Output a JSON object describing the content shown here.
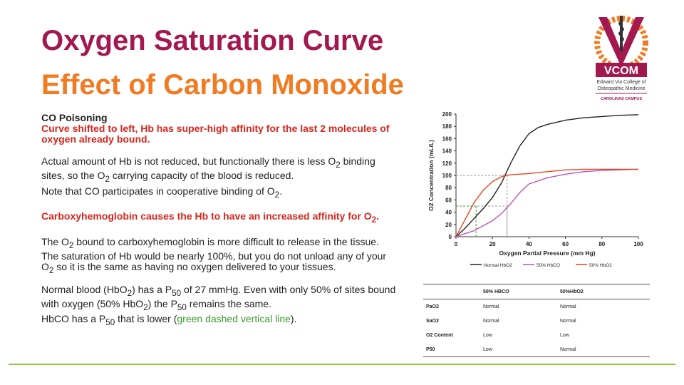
{
  "title": {
    "line1": "Oxygen Saturation Curve",
    "line2": "Effect of Carbon Monoxide"
  },
  "logo": {
    "abbr": "VCOM",
    "line1": "Edward Via College of",
    "line2": "Osteopathic Medicine",
    "campus": "CAROLINAS CAMPUS"
  },
  "colors": {
    "maroon": "#a3184f",
    "orange": "#f07b22",
    "red": "#d8251d",
    "green": "#3a9a2a",
    "accent_line": "#8cc63f"
  },
  "body": {
    "p1_heading": "CO Poisoning",
    "p1_red": "Curve shifted to left, Hb has super-high affinity for the last 2 molecules of oxygen already bound.",
    "p2_a": "Actual amount of Hb is not reduced, but functionally there is less O",
    "p2_sub": "2",
    "p2_b": " binding sites, so the O",
    "p2_sub2": "2",
    "p2_c": " carrying capacity of the blood is reduced.",
    "p3_a": "Note that CO participates in cooperative binding of O",
    "p3_sub": "2",
    "p3_b": ".",
    "p4_a": "Carboxyhemoglobin causes the Hb to have an increased affinity for O",
    "p4_sub": "2",
    "p4_b": ".",
    "p5_a": "The O",
    "p5_sub": "2",
    "p5_b": " bound to carboxyhemoglobin is more difficult to release in the tissue.  The saturation of Hb would be nearly 100%, but you do not unload any of your O",
    "p5_sub2": "2",
    "p5_c": " so it is the same as having no oxygen delivered to your tissues.",
    "p6_a": "Normal blood (HbO",
    "p6_sub": "2",
    "p6_b": ") has a P",
    "p6_sub2": "50",
    "p6_c": " of 27 mmHg. Even with only 50% of sites bound with oxygen (50% HbO",
    "p6_sub3": "2",
    "p6_d": ") the P",
    "p6_sub4": "50",
    "p6_e": " remains the same.",
    "p7_a": "HbCO has a P",
    "p7_sub": "50",
    "p7_b": " that is lower (",
    "p7_green": "green dashed vertical line",
    "p7_c": ")."
  },
  "chart_data": {
    "type": "line",
    "xlabel": "Oxygen Partial Pressure (mm Hg)",
    "ylabel": "O2 Concentration (mL/L)",
    "xlim": [
      0,
      100
    ],
    "ylim": [
      0,
      200
    ],
    "xticks": [
      0,
      20,
      40,
      60,
      80,
      100
    ],
    "yticks": [
      0,
      20,
      40,
      60,
      80,
      100,
      120,
      140,
      160,
      180,
      200
    ],
    "grid": false,
    "legend_position": "bottom",
    "series": [
      {
        "name": "Normal HbO2",
        "color": "#222222",
        "x": [
          0,
          5,
          10,
          15,
          20,
          25,
          30,
          35,
          40,
          45,
          50,
          60,
          70,
          80,
          90,
          100
        ],
        "y": [
          0,
          14,
          30,
          46,
          64,
          88,
          120,
          148,
          168,
          178,
          183,
          190,
          194,
          196,
          198,
          199
        ]
      },
      {
        "name": "50% HbCO",
        "color": "#c050c0",
        "x": [
          0,
          10,
          20,
          25,
          30,
          35,
          40,
          50,
          60,
          70,
          80,
          90,
          100
        ],
        "y": [
          0,
          10,
          26,
          38,
          54,
          72,
          86,
          96,
          102,
          106,
          108,
          109,
          110
        ]
      },
      {
        "name": "50% HbO2",
        "color": "#e8461e",
        "x": [
          0,
          5,
          10,
          15,
          20,
          25,
          30,
          40,
          50,
          60,
          70,
          80,
          90,
          100
        ],
        "y": [
          0,
          28,
          56,
          76,
          90,
          98,
          101,
          103,
          106,
          109,
          110,
          110,
          110,
          110
        ]
      }
    ],
    "reference_lines": [
      {
        "style": "dashed",
        "color": "#999999",
        "x": 28,
        "y": 100
      },
      {
        "style": "dashed",
        "color": "#999999",
        "x": 28,
        "y": 50
      },
      {
        "style": "dashed",
        "color": "#3a9a2a",
        "x": 11,
        "y": 50
      }
    ]
  },
  "table": {
    "headers": [
      "",
      "50% HBCO",
      "50%HbO2"
    ],
    "rows": [
      [
        "PaO2",
        "Normal",
        "Normal"
      ],
      [
        "SaO2",
        "Normal",
        "Normal"
      ],
      [
        "O2 Content",
        "Low",
        "Low"
      ],
      [
        "P50",
        "Low",
        "Normal"
      ]
    ]
  }
}
